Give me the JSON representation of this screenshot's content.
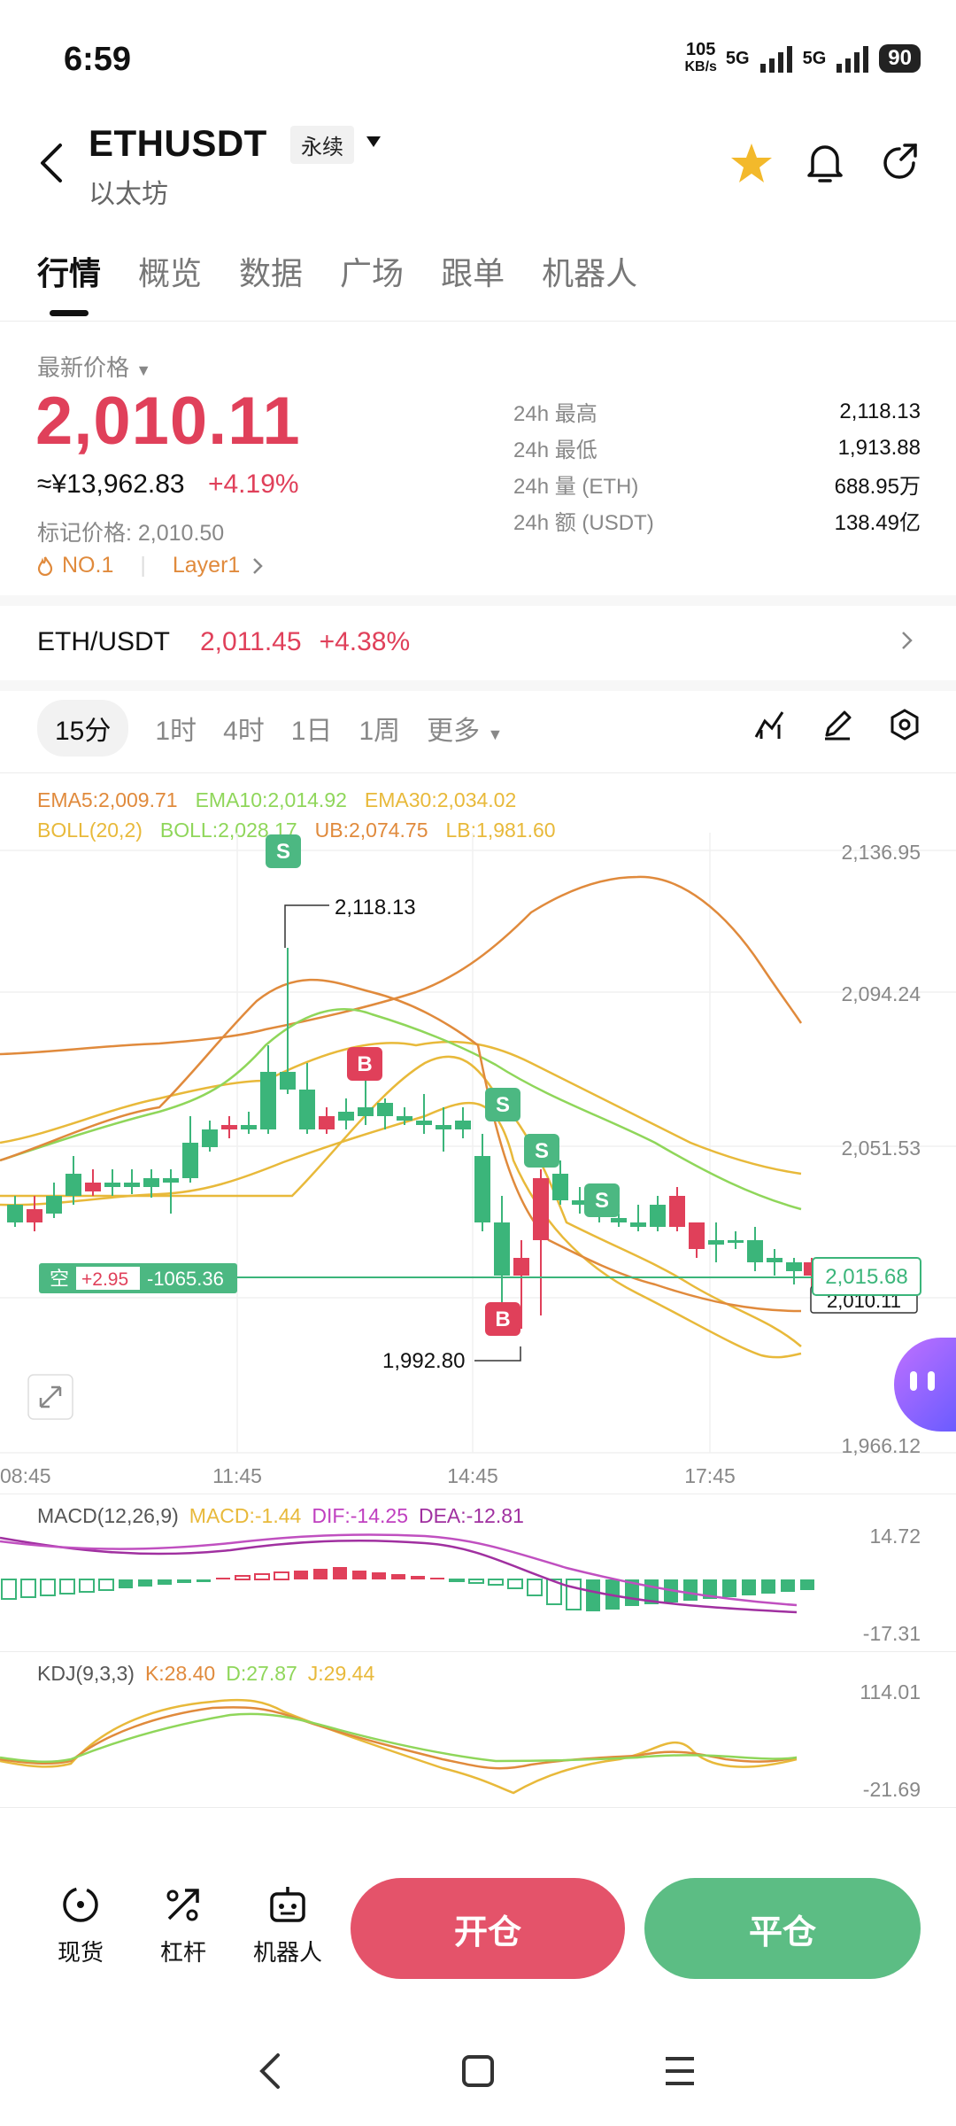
{
  "status_bar": {
    "time": "6:59",
    "speed": "105",
    "speed_unit": "KB/s",
    "net1": "5G",
    "net2": "5G",
    "battery": "90"
  },
  "header": {
    "symbol": "ETHUSDT",
    "contract_type": "永续",
    "name": "以太坊"
  },
  "tabs": [
    {
      "label": "行情",
      "active": true
    },
    {
      "label": "概览"
    },
    {
      "label": "数据"
    },
    {
      "label": "广场"
    },
    {
      "label": "跟单"
    },
    {
      "label": "机器人"
    }
  ],
  "price": {
    "label": "最新价格",
    "last": "2,010.11",
    "cny": "≈¥13,962.83",
    "change": "+4.19%",
    "mark_label": "标记价格: 2,010.50",
    "rank_tag": "NO.1",
    "sector_tag": "Layer1"
  },
  "stats": [
    {
      "label": "24h 最高",
      "value": "2,118.13"
    },
    {
      "label": "24h 最低",
      "value": "1,913.88"
    },
    {
      "label": "24h 量 (ETH)",
      "value": "688.95万"
    },
    {
      "label": "24h 额 (USDT)",
      "value": "138.49亿"
    }
  ],
  "spot_pair": {
    "label": "ETH/USDT",
    "price": "2,011.45",
    "change": "+4.38%"
  },
  "intervals": [
    {
      "label": "15分",
      "active": true
    },
    {
      "label": "1时"
    },
    {
      "label": "4时"
    },
    {
      "label": "1日"
    },
    {
      "label": "1周"
    },
    {
      "label": "更多"
    }
  ],
  "indicators": {
    "ema5": "EMA5:2,009.71",
    "ema10": "EMA10:2,014.92",
    "ema30": "EMA30:2,034.02",
    "boll_name": "BOLL(20,2)",
    "boll": "BOLL:2,028.17",
    "ub": "UB:2,074.75",
    "lb": "LB:1,981.60"
  },
  "main_chart": {
    "y_ticks": [
      "2,136.95",
      "2,094.24",
      "2,051.53",
      "1,966.12"
    ],
    "x_ticks": [
      "08:45",
      "11:45",
      "14:45",
      "17:45"
    ],
    "high_label": "2,118.13",
    "low_label": "1,992.80",
    "current_price": "2,015.68",
    "last_price": "2,010.11",
    "position": {
      "side": "空",
      "pnl": "+2.95",
      "amount": "-1065.36"
    },
    "marker_s": "S",
    "marker_b": "B"
  },
  "macd": {
    "name": "MACD(12,26,9)",
    "macd": "MACD:-1.44",
    "dif": "DIF:-14.25",
    "dea": "DEA:-12.81",
    "y_top": "14.72",
    "y_bottom": "-17.31"
  },
  "kdj": {
    "name": "KDJ(9,3,3)",
    "k": "K:28.40",
    "d": "D:27.87",
    "j": "J:29.44",
    "y_top": "114.01",
    "y_bottom": "-21.69"
  },
  "bottom_tools": [
    {
      "label": "现货",
      "icon": "spot-icon"
    },
    {
      "label": "杠杆",
      "icon": "leverage-icon"
    },
    {
      "label": "机器人",
      "icon": "robot-icon"
    }
  ],
  "actions": {
    "open": "开仓",
    "close": "平仓"
  },
  "colors": {
    "up": "#e0405a",
    "down": "#3bb57a",
    "ema5": "#e08a3c",
    "ema10": "#8fd65a",
    "ema30": "#e8b93a"
  }
}
